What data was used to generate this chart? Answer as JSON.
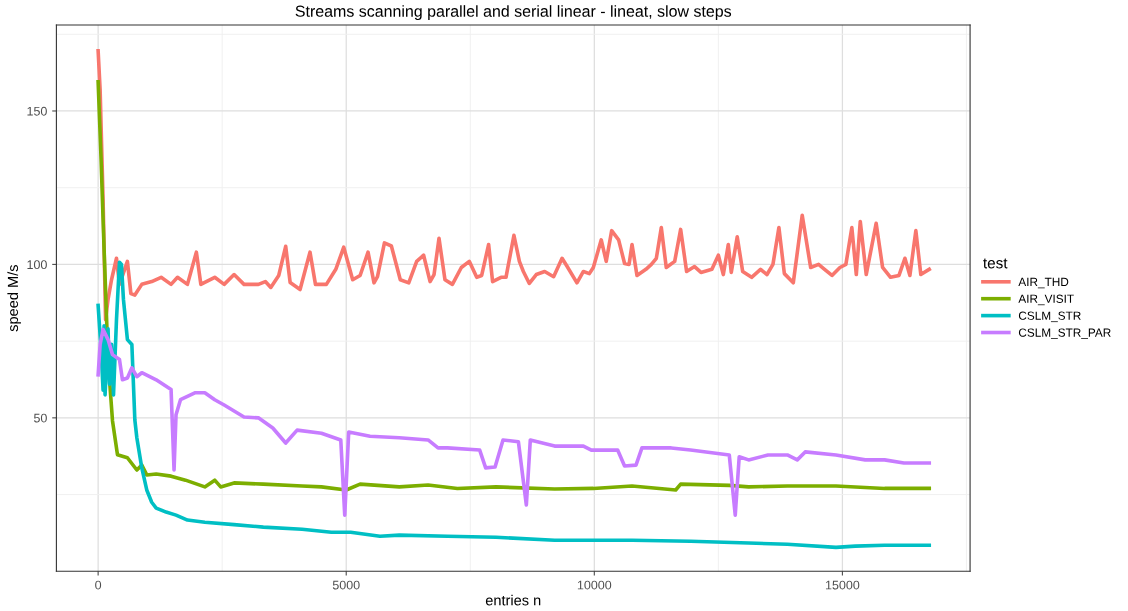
{
  "chart_data": {
    "type": "line",
    "title": "Streams scanning parallel and serial linear - lineat, slow steps",
    "xlabel": "entries n",
    "ylabel": "speed M/s",
    "legend_title": "test",
    "legend": "right",
    "grid": true,
    "line_style": "solid",
    "marker": "none",
    "xlim": [
      -841,
      17573
    ],
    "ylim": [
      0,
      178
    ],
    "xticks": [
      0,
      5000,
      10000,
      15000
    ],
    "yticks": [
      50,
      100,
      150
    ],
    "series": [
      {
        "name": "AIR_THD",
        "color": "#f8766d",
        "x": [
          0,
          40,
          100,
          150,
          200,
          270,
          370,
          430,
          590,
          660,
          740,
          880,
          1080,
          1270,
          1470,
          1600,
          1800,
          1980,
          2070,
          2350,
          2540,
          2740,
          2940,
          3230,
          3370,
          3480,
          3640,
          3780,
          3870,
          4070,
          4270,
          4380,
          4600,
          4790,
          4950,
          5130,
          5280,
          5440,
          5560,
          5630,
          5770,
          5910,
          6090,
          6260,
          6420,
          6560,
          6690,
          6770,
          6870,
          6990,
          7140,
          7320,
          7480,
          7630,
          7730,
          7870,
          7950,
          8120,
          8220,
          8380,
          8490,
          8570,
          8690,
          8830,
          9000,
          9180,
          9350,
          9450,
          9650,
          9780,
          9900,
          9980,
          10140,
          10240,
          10350,
          10490,
          10610,
          10700,
          10760,
          10860,
          11040,
          11150,
          11250,
          11350,
          11450,
          11620,
          11740,
          11860,
          12020,
          12150,
          12370,
          12500,
          12600,
          12700,
          12760,
          12880,
          12990,
          13170,
          13350,
          13480,
          13600,
          13720,
          13830,
          14010,
          14190,
          14360,
          14520,
          14640,
          14790,
          14950,
          15070,
          15190,
          15280,
          15360,
          15480,
          15680,
          15810,
          15970,
          16140,
          16260,
          16360,
          16480,
          16580,
          16750
        ],
        "values": [
          169.6,
          157,
          121,
          82,
          88.6,
          95,
          102,
          93.5,
          101,
          90.5,
          90,
          93.5,
          94.4,
          95.8,
          93.5,
          95.8,
          93.5,
          104,
          93.5,
          95.8,
          93.5,
          96.7,
          93.5,
          93.5,
          94.4,
          92.5,
          96.4,
          105.9,
          94.1,
          91.8,
          104,
          93.5,
          93.5,
          98.4,
          105.6,
          95,
          96.4,
          104,
          94,
          96,
          107,
          106,
          95,
          94,
          101,
          103,
          94.4,
          96.7,
          108.5,
          95,
          93.5,
          99,
          101,
          95.8,
          96.4,
          106.5,
          94.4,
          95.8,
          95.8,
          109.5,
          101,
          97.7,
          93.8,
          96.7,
          97.7,
          96,
          102,
          99.4,
          94,
          97.7,
          97,
          99,
          108,
          101,
          111,
          108,
          100.3,
          100,
          106.5,
          96.4,
          98.4,
          100,
          102,
          112,
          99,
          101,
          111.4,
          97.7,
          99.3,
          97.4,
          98.4,
          103,
          96.7,
          106.5,
          97.4,
          109,
          97.7,
          95.8,
          98.4,
          96.7,
          100,
          112,
          97,
          94,
          116,
          99,
          100,
          98.4,
          96.4,
          99,
          100,
          112,
          96.7,
          114,
          96.7,
          113.4,
          99,
          95.8,
          96.4,
          102,
          96.4,
          111,
          96.7,
          98.4
        ]
      },
      {
        "name": "AIR_VISIT",
        "color": "#7cae00",
        "x": [
          0,
          60,
          120,
          200,
          290,
          390,
          590,
          780,
          880,
          980,
          1170,
          1470,
          1760,
          2150,
          2350,
          2470,
          2740,
          3330,
          4110,
          4500,
          5000,
          5280,
          6070,
          6650,
          7240,
          8020,
          9200,
          9980,
          10760,
          11640,
          11740,
          12720,
          13110,
          13890,
          14870,
          15850,
          16750
        ],
        "values": [
          159.5,
          134,
          105,
          69,
          49,
          38,
          37,
          33,
          34.6,
          31.4,
          31.7,
          31,
          29.7,
          27.5,
          29.7,
          27.5,
          28.8,
          28.4,
          27.8,
          27.5,
          26.5,
          28.4,
          27.5,
          28.1,
          27,
          27.5,
          26.8,
          27,
          27.8,
          26.5,
          28.4,
          28,
          27.5,
          27.8,
          27.8,
          27,
          27
        ]
      },
      {
        "name": "CSLM_STR",
        "color": "#00bfc4",
        "x": [
          0,
          60,
          100,
          120,
          140,
          200,
          230,
          270,
          310,
          370,
          430,
          470,
          510,
          590,
          680,
          740,
          780,
          880,
          980,
          1080,
          1170,
          1370,
          1570,
          1800,
          2150,
          2740,
          3330,
          4110,
          4700,
          5090,
          5680,
          6070,
          7040,
          8020,
          9200,
          9980,
          10760,
          11940,
          13110,
          13890,
          14870,
          15260,
          15850,
          16750
        ],
        "values": [
          86.6,
          72,
          59,
          80,
          57.5,
          79,
          61,
          74,
          57.5,
          82,
          100.7,
          100,
          88.6,
          75.5,
          73.9,
          49.3,
          43.5,
          33.7,
          26.5,
          22.5,
          20.6,
          19.3,
          18.3,
          16.7,
          16,
          15.2,
          14.4,
          13.7,
          12.7,
          12.7,
          11.4,
          11.8,
          11.4,
          11.1,
          10.1,
          10.1,
          10.1,
          9.8,
          9.2,
          8.8,
          7.8,
          8.2,
          8.5,
          8.5
        ]
      },
      {
        "name": "CSLM_STR_PAR",
        "color": "#c77cff",
        "x": [
          0,
          40,
          100,
          200,
          290,
          430,
          490,
          590,
          680,
          780,
          880,
          1170,
          1470,
          1530,
          1570,
          1660,
          1960,
          2150,
          2350,
          2540,
          2940,
          3230,
          3520,
          3780,
          4010,
          4500,
          4890,
          4970,
          5050,
          5480,
          6070,
          6650,
          6850,
          7040,
          7690,
          7810,
          8000,
          8160,
          8470,
          8630,
          8710,
          9200,
          9780,
          9940,
          10470,
          10610,
          10840,
          10960,
          11550,
          11940,
          12720,
          12840,
          12920,
          13110,
          13500,
          13890,
          14090,
          14250,
          14870,
          15460,
          15850,
          16240,
          16750
        ],
        "values": [
          64,
          73.9,
          78.8,
          75.5,
          70.6,
          69,
          62.4,
          63,
          66.3,
          63.4,
          64.7,
          62.4,
          59.2,
          33,
          51,
          55.9,
          58.2,
          58.2,
          55.9,
          54.2,
          50.3,
          50,
          46.7,
          41.8,
          46,
          45,
          42.8,
          18.3,
          45.4,
          44,
          43.5,
          42.8,
          40.2,
          40.2,
          39.5,
          33.7,
          34,
          42.8,
          42.2,
          21.6,
          42.8,
          40.8,
          40.8,
          39.5,
          39.5,
          34.3,
          34.6,
          40.2,
          40.2,
          39.5,
          37.9,
          18.3,
          37.3,
          36.3,
          37.9,
          37.9,
          36.3,
          38.9,
          37.9,
          36.3,
          36.3,
          35.3,
          35.3
        ]
      }
    ]
  }
}
